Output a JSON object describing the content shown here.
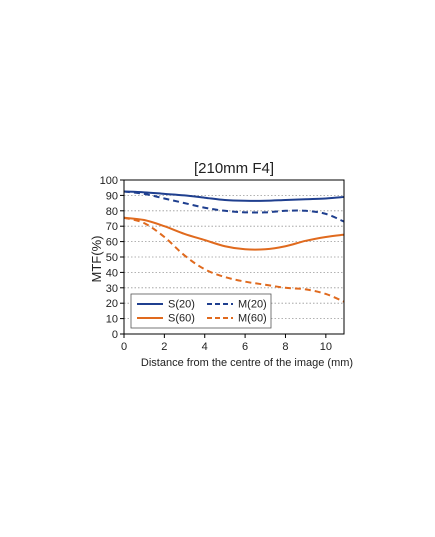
{
  "chart_data": {
    "type": "line",
    "title": "[210mm F4]",
    "xlabel": "Distance from the centre of the image (mm)",
    "ylabel": "MTF(%)",
    "xlim": [
      0,
      10.9
    ],
    "ylim": [
      0,
      100
    ],
    "xticks": [
      0,
      2,
      4,
      6,
      8,
      10
    ],
    "yticks": [
      0,
      10,
      20,
      30,
      40,
      50,
      60,
      70,
      80,
      90,
      100
    ],
    "grid": "horizontal dotted",
    "legend_position": "bottom-left",
    "series": [
      {
        "name": "S(20)",
        "color": "#1f3f8f",
        "style": "solid",
        "x": [
          0,
          1,
          2,
          3,
          4,
          5,
          6,
          7,
          8,
          9,
          10,
          10.9
        ],
        "y": [
          92.5,
          92,
          91,
          90,
          88.5,
          87,
          86.5,
          86.5,
          87,
          87.5,
          88,
          89
        ]
      },
      {
        "name": "M(20)",
        "color": "#1f3f8f",
        "style": "dashed",
        "x": [
          0,
          1,
          2,
          3,
          4,
          5,
          6,
          7,
          8,
          9,
          10,
          10.9
        ],
        "y": [
          92.5,
          91,
          88,
          85,
          82,
          80,
          79,
          79,
          80,
          80,
          78,
          73
        ]
      },
      {
        "name": "S(60)",
        "color": "#e06a1e",
        "style": "solid",
        "x": [
          0,
          1,
          2,
          3,
          4,
          5,
          6,
          7,
          8,
          9,
          10,
          10.9
        ],
        "y": [
          75.5,
          74,
          70,
          65,
          61,
          57,
          55,
          55,
          57,
          60.5,
          63,
          64.5
        ]
      },
      {
        "name": "M(60)",
        "color": "#e06a1e",
        "style": "dashed",
        "x": [
          0,
          1,
          2,
          3,
          4,
          5,
          6,
          7,
          8,
          9,
          10,
          10.9
        ],
        "y": [
          75.5,
          72,
          63,
          51,
          42,
          37,
          34,
          32,
          30,
          29,
          26,
          21
        ]
      }
    ]
  }
}
